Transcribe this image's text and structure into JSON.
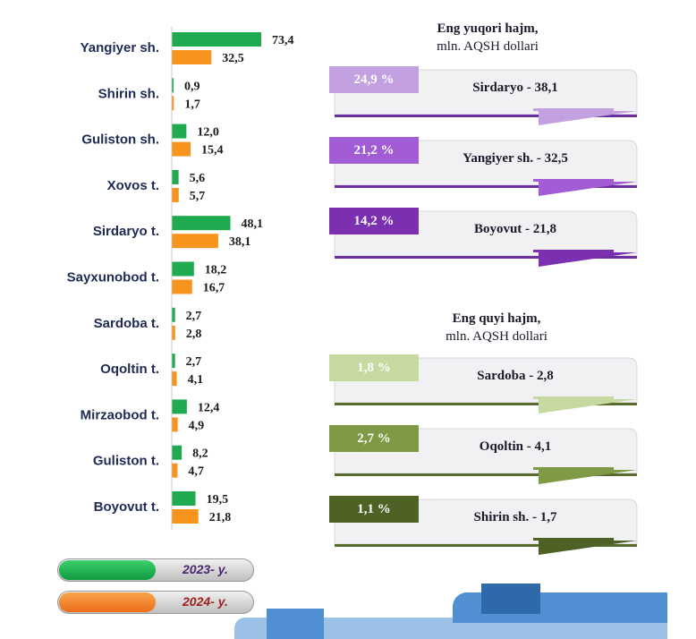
{
  "chart_data": {
    "type": "bar",
    "orientation": "horizontal",
    "categories": [
      "Yangiyer sh.",
      "Shirin sh.",
      "Guliston sh.",
      "Xovos t.",
      "Sirdaryo t.",
      "Sayxunobod t.",
      "Sardoba t.",
      "Oqoltin t.",
      "Mirzaobod t.",
      "Guliston t.",
      "Boyovut t."
    ],
    "series": [
      {
        "name": "2023- y.",
        "color": "#1faa4f",
        "values": [
          73.4,
          0.9,
          12.0,
          5.6,
          48.1,
          18.2,
          2.7,
          2.7,
          12.4,
          8.2,
          19.5
        ],
        "labels": [
          "73,4",
          "0,9",
          "12,0",
          "5,6",
          "48,1",
          "18,2",
          "2,7",
          "2,7",
          "12,4",
          "8,2",
          "19,5"
        ]
      },
      {
        "name": "2024- y.",
        "color": "#f7941d",
        "values": [
          32.5,
          1.7,
          15.4,
          5.7,
          38.1,
          16.7,
          2.8,
          4.1,
          4.9,
          4.7,
          21.8
        ],
        "labels": [
          "32,5",
          "1,7",
          "15,4",
          "5,7",
          "38,1",
          "16,7",
          "2,8",
          "4,1",
          "4,9",
          "4,7",
          "21,8"
        ]
      }
    ],
    "xlim": [
      0,
      80
    ],
    "grid": false
  },
  "top_panel": {
    "title": "Eng yuqori hajm,",
    "subtitle": "mln. AQSH dollari",
    "cards": [
      {
        "percent": "24,9 %",
        "name": "Sirdaryo - 38,1",
        "color": "#c3a0e0",
        "line": "#6b2fa0"
      },
      {
        "percent": "21,2 %",
        "name": "Yangiyer sh. - 32,5",
        "color": "#a25cd4",
        "line": "#6b2fa0"
      },
      {
        "percent": "14,2 %",
        "name": "Boyovut  - 21,8",
        "color": "#7a30b0",
        "line": "#6b2fa0"
      }
    ]
  },
  "bottom_panel": {
    "title": "Eng quyi hajm,",
    "subtitle": "mln. AQSH dollari",
    "cards": [
      {
        "percent": "1,8 %",
        "name": "Sardoba -  2,8",
        "color": "#c5d9a0",
        "line": "#566b2c"
      },
      {
        "percent": "2,7 %",
        "name": "Oqoltin - 4,1",
        "color": "#7f9a44",
        "line": "#566b2c"
      },
      {
        "percent": "1,1 %",
        "name": "Shirin sh. - 1,7",
        "color": "#4f6226",
        "line": "#566b2c"
      }
    ]
  },
  "legend": [
    {
      "label": "2023- y.",
      "color": "#1faa4f",
      "text_color": "#4a2570"
    },
    {
      "label": "2024- y.",
      "color": "#f7941d",
      "text_color": "#a01f1f"
    }
  ]
}
